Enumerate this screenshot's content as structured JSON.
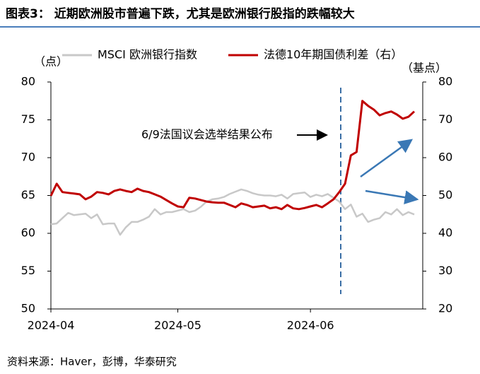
{
  "chart_data": {
    "type": "line",
    "title": "图表3：  近期欧洲股市普遍下跌，尤其是欧洲银行股指的跌幅较大",
    "y_label": "（点）",
    "y2_label": "（基点）",
    "annotation": "6/9法国议会选举结果公布",
    "source": "资料来源：Haver，彭博，华泰研究",
    "categories": [
      "2024-04",
      null,
      null,
      null,
      null,
      null,
      null,
      null,
      null,
      null,
      null,
      null,
      null,
      null,
      null,
      null,
      null,
      null,
      null,
      null,
      null,
      null,
      "2024-05",
      null,
      null,
      null,
      null,
      null,
      null,
      null,
      null,
      null,
      null,
      null,
      null,
      null,
      null,
      null,
      null,
      null,
      null,
      null,
      null,
      null,
      null,
      "2024-06",
      null,
      null,
      null,
      null,
      null,
      null,
      null,
      null,
      null,
      null,
      null,
      null,
      null,
      null,
      null,
      null,
      null,
      null
    ],
    "series": [
      {
        "name": "MSCI 欧洲银行指数",
        "color": "#c8c8c8",
        "axis": "y",
        "values": [
          61.2,
          61.3,
          62,
          62.7,
          62.4,
          62.5,
          62.6,
          62,
          62.5,
          61.2,
          61.3,
          61.3,
          59.8,
          60.8,
          61.5,
          61.5,
          61.8,
          62.2,
          63.2,
          62.5,
          62.8,
          62.8,
          63.0,
          63.2,
          62.8,
          63,
          63.5,
          64.2,
          64.5,
          64.6,
          64.8,
          65.2,
          65.5,
          65.8,
          65.6,
          65.3,
          65.1,
          65,
          65,
          64.9,
          65.1,
          64.6,
          65.2,
          65.3,
          65.4,
          64.8,
          65.1,
          64.9,
          65.2,
          64.7,
          64.2,
          63.2,
          63.8,
          62.2,
          62.6,
          61.5,
          61.8,
          62.0,
          62.8,
          62.5,
          63.2,
          62.4,
          62.8,
          62.5
        ]
      },
      {
        "name": "法德10年期国债利差（右）",
        "color": "#c00000",
        "axis": "y2",
        "values": [
          49.9,
          53.1,
          50.9,
          50.7,
          50.5,
          50.3,
          49.0,
          49.7,
          50.9,
          50.7,
          50.3,
          51.2,
          51.6,
          51.2,
          50.9,
          51.8,
          51.2,
          50.9,
          50.3,
          49.7,
          48.8,
          47.9,
          47.1,
          46.9,
          49.4,
          49.2,
          48.8,
          48.4,
          48.2,
          48.1,
          48.1,
          47.5,
          46.9,
          47.9,
          47.5,
          46.9,
          47.1,
          47.3,
          46.6,
          46.9,
          46.4,
          47.5,
          46.6,
          46.4,
          46.7,
          47.1,
          47.5,
          46.9,
          47.9,
          49.0,
          50.9,
          53.1,
          60.6,
          61.5,
          75.0,
          73.7,
          72.7,
          71.2,
          71.8,
          72.2,
          71.4,
          70.3,
          70.8,
          72.2
        ]
      }
    ],
    "ylim": [
      50,
      80
    ],
    "yticks": [
      50,
      55,
      60,
      65,
      70,
      75,
      80
    ],
    "y2lim": [
      20,
      80
    ],
    "y2ticks": [
      20,
      30,
      40,
      50,
      60,
      70,
      80
    ],
    "grid": false
  }
}
